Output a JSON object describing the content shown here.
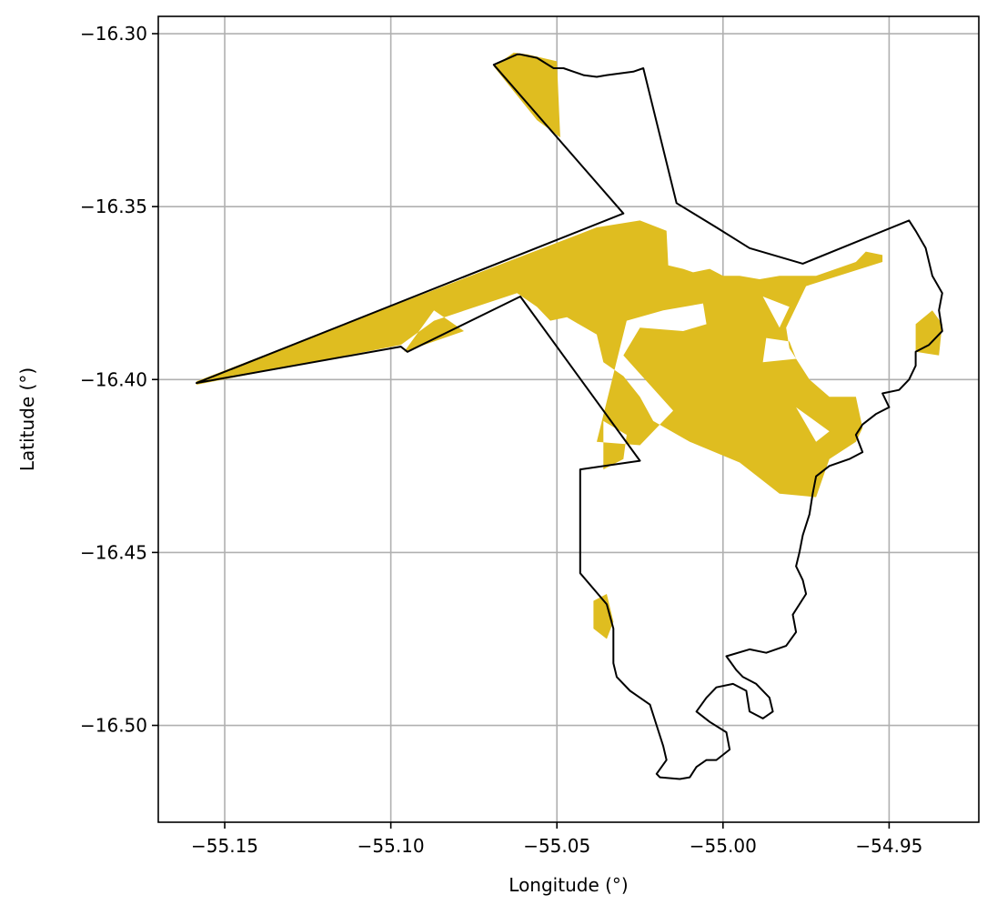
{
  "chart_data": {
    "type": "map",
    "title": "",
    "xlabel": "Longitude (°)",
    "ylabel": "Latitude (°)",
    "xlim": [
      -55.17,
      -54.923
    ],
    "ylim": [
      -16.528,
      -16.295
    ],
    "xticks": [
      -55.15,
      -55.1,
      -55.05,
      -55.0,
      -54.95
    ],
    "xtick_labels": [
      "−55.15",
      "−55.10",
      "−55.05",
      "−55.00",
      "−54.95"
    ],
    "yticks": [
      -16.3,
      -16.35,
      -16.4,
      -16.45,
      -16.5
    ],
    "ytick_labels": [
      "−16.30",
      "−16.35",
      "−16.40",
      "−16.45",
      "−16.50"
    ],
    "grid": true,
    "colors": {
      "fill": "#dfbd20",
      "boundary": "#000000",
      "grid": "#b0b0b0"
    },
    "layers": [
      {
        "name": "",
        "kind": "filled-region",
        "polygons": [
          [
            [
              -55.1585,
              -16.4015
            ],
            [
              -55.1585,
              -16.4005
            ],
            [
              -55.038,
              -16.356
            ],
            [
              -55.025,
              -16.354
            ],
            [
              -55.017,
              -16.357
            ],
            [
              -55.0165,
              -16.367
            ],
            [
              -55.012,
              -16.368
            ],
            [
              -55.009,
              -16.369
            ],
            [
              -55.004,
              -16.368
            ],
            [
              -55.0,
              -16.37
            ],
            [
              -54.995,
              -16.37
            ],
            [
              -54.989,
              -16.371
            ],
            [
              -54.983,
              -16.37
            ],
            [
              -54.972,
              -16.37
            ],
            [
              -54.96,
              -16.366
            ],
            [
              -54.957,
              -16.363
            ],
            [
              -54.952,
              -16.364
            ],
            [
              -54.952,
              -16.366
            ],
            [
              -54.975,
              -16.373
            ],
            [
              -54.981,
              -16.385
            ],
            [
              -54.98,
              -16.391
            ],
            [
              -54.974,
              -16.4
            ],
            [
              -54.968,
              -16.405
            ],
            [
              -54.96,
              -16.405
            ],
            [
              -54.958,
              -16.414
            ],
            [
              -54.96,
              -16.418
            ],
            [
              -54.968,
              -16.423
            ],
            [
              -54.972,
              -16.434
            ],
            [
              -54.983,
              -16.433
            ],
            [
              -54.995,
              -16.424
            ],
            [
              -55.01,
              -16.418
            ],
            [
              -55.021,
              -16.412
            ],
            [
              -55.025,
              -16.405
            ],
            [
              -55.03,
              -16.399
            ],
            [
              -55.036,
              -16.395
            ],
            [
              -55.038,
              -16.387
            ],
            [
              -55.047,
              -16.382
            ],
            [
              -55.052,
              -16.383
            ],
            [
              -55.056,
              -16.379
            ],
            [
              -55.062,
              -16.375
            ],
            [
              -55.087,
              -16.383
            ],
            [
              -55.097,
              -16.39
            ],
            [
              -55.1585,
              -16.4015
            ]
          ],
          [
            [
              -55.069,
              -16.3095
            ],
            [
              -55.063,
              -16.3055
            ],
            [
              -55.059,
              -16.306
            ],
            [
              -55.05,
              -16.308
            ],
            [
              -55.049,
              -16.33
            ],
            [
              -55.056,
              -16.325
            ],
            [
              -55.069,
              -16.3095
            ]
          ],
          [
            [
              -54.942,
              -16.384
            ],
            [
              -54.937,
              -16.38
            ],
            [
              -54.934,
              -16.384
            ],
            [
              -54.935,
              -16.393
            ],
            [
              -54.942,
              -16.392
            ],
            [
              -54.942,
              -16.384
            ]
          ],
          [
            [
              -55.036,
              -16.412
            ],
            [
              -55.029,
              -16.416
            ],
            [
              -55.03,
              -16.423
            ],
            [
              -55.036,
              -16.426
            ],
            [
              -55.036,
              -16.412
            ]
          ],
          [
            [
              -55.039,
              -16.464
            ],
            [
              -55.035,
              -16.462
            ],
            [
              -55.033,
              -16.47
            ],
            [
              -55.035,
              -16.475
            ],
            [
              -55.039,
              -16.472
            ],
            [
              -55.039,
              -16.464
            ]
          ]
        ],
        "holes": [
          [
            [
              -55.087,
              -16.38
            ],
            [
              -55.096,
              -16.392
            ],
            [
              -55.078,
              -16.386
            ],
            [
              -55.087,
              -16.38
            ]
          ],
          [
            [
              -55.038,
              -16.418
            ],
            [
              -55.025,
              -16.419
            ],
            [
              -55.015,
              -16.409
            ],
            [
              -55.03,
              -16.393
            ],
            [
              -55.025,
              -16.385
            ],
            [
              -55.012,
              -16.386
            ],
            [
              -55.005,
              -16.384
            ],
            [
              -55.006,
              -16.378
            ],
            [
              -55.018,
              -16.38
            ],
            [
              -55.029,
              -16.383
            ],
            [
              -55.038,
              -16.418
            ]
          ],
          [
            [
              -54.987,
              -16.388
            ],
            [
              -54.98,
              -16.389
            ],
            [
              -54.978,
              -16.394
            ],
            [
              -54.988,
              -16.395
            ],
            [
              -54.987,
              -16.388
            ]
          ],
          [
            [
              -54.978,
              -16.408
            ],
            [
              -54.968,
              -16.415
            ],
            [
              -54.972,
              -16.418
            ],
            [
              -54.978,
              -16.408
            ]
          ],
          [
            [
              -54.988,
              -16.376
            ],
            [
              -54.98,
              -16.379
            ],
            [
              -54.983,
              -16.385
            ],
            [
              -54.988,
              -16.376
            ]
          ]
        ]
      },
      {
        "name": "",
        "kind": "boundary-outline",
        "rings": [
          [
            [
              -55.1585,
              -16.401
            ],
            [
              -55.097,
              -16.3905
            ],
            [
              -55.095,
              -16.392
            ],
            [
              -55.061,
              -16.376
            ],
            [
              -55.025,
              -16.4235
            ],
            [
              -55.043,
              -16.426
            ],
            [
              -55.043,
              -16.456
            ],
            [
              -55.035,
              -16.465
            ],
            [
              -55.033,
              -16.472
            ],
            [
              -55.033,
              -16.482
            ],
            [
              -55.032,
              -16.486
            ],
            [
              -55.028,
              -16.49
            ],
            [
              -55.022,
              -16.494
            ],
            [
              -55.02,
              -16.5
            ],
            [
              -55.018,
              -16.506
            ],
            [
              -55.017,
              -16.51
            ],
            [
              -55.02,
              -16.514
            ],
            [
              -55.019,
              -16.515
            ],
            [
              -55.013,
              -16.5155
            ],
            [
              -55.01,
              -16.515
            ],
            [
              -55.008,
              -16.512
            ],
            [
              -55.005,
              -16.51
            ],
            [
              -55.002,
              -16.51
            ],
            [
              -54.998,
              -16.507
            ],
            [
              -54.999,
              -16.502
            ],
            [
              -55.004,
              -16.499
            ],
            [
              -55.008,
              -16.496
            ],
            [
              -55.005,
              -16.492
            ],
            [
              -55.002,
              -16.489
            ],
            [
              -54.997,
              -16.488
            ],
            [
              -54.993,
              -16.49
            ],
            [
              -54.992,
              -16.496
            ],
            [
              -54.988,
              -16.498
            ],
            [
              -54.985,
              -16.496
            ],
            [
              -54.986,
              -16.492
            ],
            [
              -54.99,
              -16.488
            ],
            [
              -54.994,
              -16.486
            ],
            [
              -54.996,
              -16.484
            ],
            [
              -54.999,
              -16.48
            ],
            [
              -54.992,
              -16.478
            ],
            [
              -54.987,
              -16.479
            ],
            [
              -54.981,
              -16.477
            ],
            [
              -54.978,
              -16.473
            ],
            [
              -54.979,
              -16.468
            ],
            [
              -54.975,
              -16.462
            ],
            [
              -54.976,
              -16.458
            ],
            [
              -54.978,
              -16.454
            ],
            [
              -54.977,
              -16.45
            ],
            [
              -54.976,
              -16.445
            ],
            [
              -54.974,
              -16.439
            ],
            [
              -54.973,
              -16.433
            ],
            [
              -54.972,
              -16.428
            ],
            [
              -54.968,
              -16.425
            ],
            [
              -54.962,
              -16.423
            ],
            [
              -54.958,
              -16.421
            ],
            [
              -54.96,
              -16.416
            ],
            [
              -54.958,
              -16.413
            ],
            [
              -54.954,
              -16.41
            ],
            [
              -54.95,
              -16.408
            ],
            [
              -54.952,
              -16.404
            ],
            [
              -54.947,
              -16.403
            ],
            [
              -54.944,
              -16.4
            ],
            [
              -54.942,
              -16.396
            ],
            [
              -54.942,
              -16.392
            ],
            [
              -54.938,
              -16.39
            ],
            [
              -54.934,
              -16.386
            ],
            [
              -54.935,
              -16.38
            ],
            [
              -54.934,
              -16.375
            ],
            [
              -54.937,
              -16.37
            ],
            [
              -54.939,
              -16.362
            ],
            [
              -54.942,
              -16.357
            ],
            [
              -54.944,
              -16.354
            ],
            [
              -54.976,
              -16.3665
            ],
            [
              -54.992,
              -16.362
            ],
            [
              -55.002,
              -16.356
            ],
            [
              -55.014,
              -16.349
            ],
            [
              -55.024,
              -16.31
            ],
            [
              -55.027,
              -16.311
            ],
            [
              -55.035,
              -16.312
            ],
            [
              -55.038,
              -16.3125
            ],
            [
              -55.042,
              -16.312
            ],
            [
              -55.045,
              -16.311
            ],
            [
              -55.048,
              -16.31
            ],
            [
              -55.051,
              -16.31
            ],
            [
              -55.056,
              -16.307
            ],
            [
              -55.061,
              -16.306
            ],
            [
              -55.062,
              -16.306
            ],
            [
              -55.069,
              -16.309
            ],
            [
              -55.03,
              -16.352
            ],
            [
              -55.1585,
              -16.401
            ]
          ]
        ]
      }
    ]
  }
}
